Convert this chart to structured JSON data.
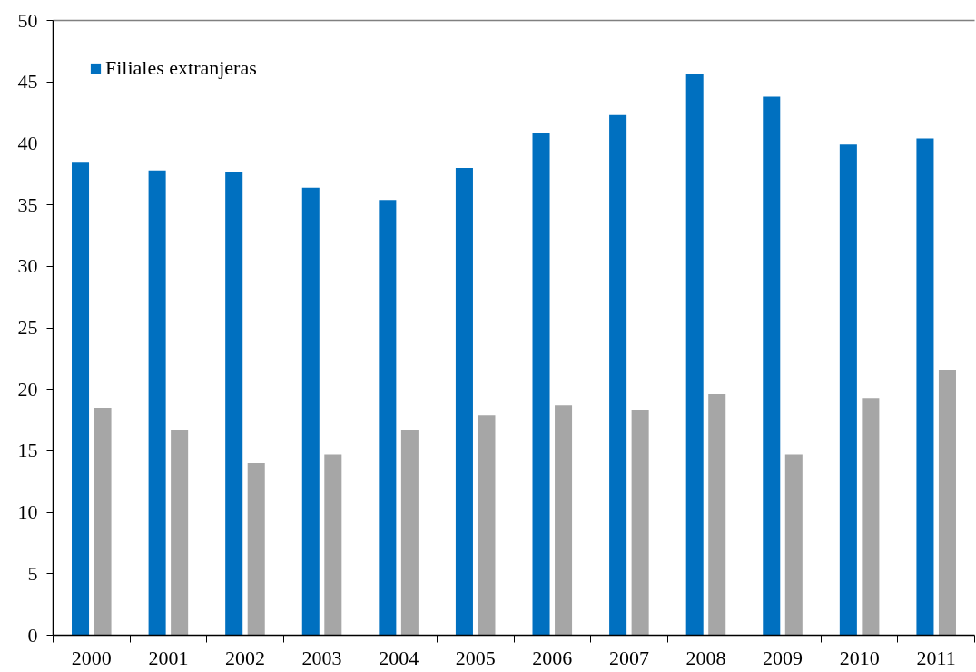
{
  "chart_data": {
    "type": "bar",
    "categories": [
      "2000",
      "2001",
      "2002",
      "2003",
      "2004",
      "2005",
      "2006",
      "2007",
      "2008",
      "2009",
      "2010",
      "2011"
    ],
    "series": [
      {
        "name": "Filiales extranjeras",
        "color": "#0070c0",
        "values": [
          38.5,
          37.8,
          37.7,
          36.4,
          35.4,
          38.0,
          40.8,
          42.3,
          45.6,
          43.8,
          39.9,
          40.4
        ]
      },
      {
        "color": "#a6a6a6",
        "values": [
          18.5,
          16.7,
          14.0,
          14.7,
          16.7,
          17.9,
          18.7,
          18.3,
          19.6,
          14.7,
          19.3,
          21.6
        ]
      }
    ],
    "ylim": [
      0,
      50
    ],
    "yticks": [
      0,
      5,
      10,
      15,
      20,
      25,
      30,
      35,
      40,
      45,
      50
    ],
    "grid": false,
    "legend": "top left"
  }
}
